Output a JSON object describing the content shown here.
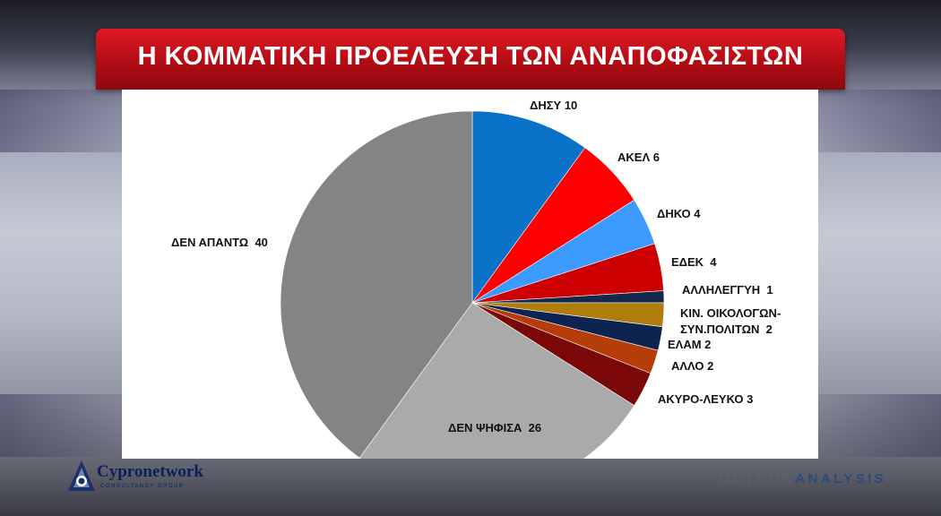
{
  "header": {
    "title": "Η ΚΟΜΜΑΤΙΚΗ ΠΡΟΕΛΕΥΣΗ ΤΩΝ ΑΝΑΠΟΦΑΣΙΣΤΩΝ"
  },
  "chart_data": {
    "type": "pie",
    "title": "Η ΚΟΜΜΑΤΙΚΗ ΠΡΟΕΛΕΥΣΗ ΤΩΝ ΑΝΑΠΟΦΑΣΙΣΤΩΝ",
    "start": "12 o'clock",
    "direction": "clockwise",
    "slices": [
      {
        "label": "ΔΗΣΥ 10",
        "value": 10,
        "color": "#0a72c8"
      },
      {
        "label": "ΑΚΕΛ 6",
        "value": 6,
        "color": "#ff0000"
      },
      {
        "label": "ΔΗΚΟ 4",
        "value": 4,
        "color": "#3d9bff"
      },
      {
        "label": "ΕΔΕΚ  4",
        "value": 4,
        "color": "#cc0000"
      },
      {
        "label": "ΑΛΛΗΛΕΓΓΥΗ  1",
        "value": 1,
        "color": "#13294b"
      },
      {
        "label": "ΚΙΝ. ΟΙΚΟΛΟΓΩΝ-|ΣΥΝ.ΠΟΛΙΤΩΝ  2",
        "value": 2,
        "color": "#b07d0c"
      },
      {
        "label": "ΕΛΑΜ 2",
        "value": 2,
        "color": "#0e2450"
      },
      {
        "label": "ΑΛΛΟ 2",
        "value": 2,
        "color": "#b53d0a"
      },
      {
        "label": "ΑΚΥΡΟ-ΛΕΥΚΟ 3",
        "value": 3,
        "color": "#7a0808"
      },
      {
        "label": "ΔΕΝ ΨΗΦΙΣΑ  26",
        "value": 26,
        "color": "#aaaaaa"
      },
      {
        "label": "ΔΕΝ ΑΠΑΝΤΩ  40",
        "value": 40,
        "color": "#848484"
      }
    ]
  },
  "logos": {
    "left_name": "Cypronetwork",
    "left_sub": "CONSULTANCY GROUP",
    "right_first": "METRON",
    "right_second": "ANALYSIS"
  }
}
